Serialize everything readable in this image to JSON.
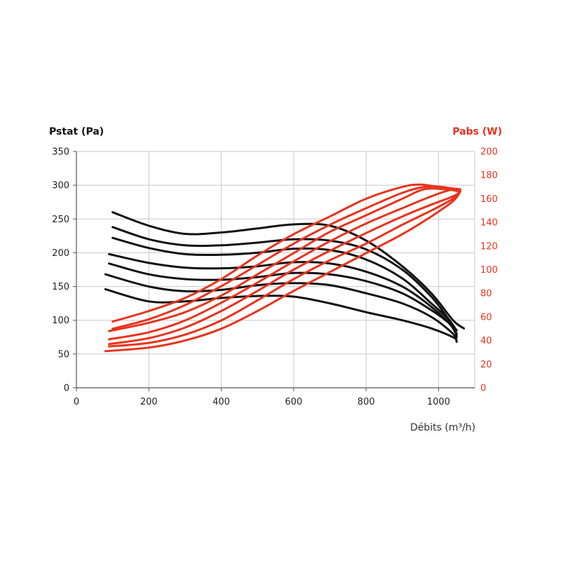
{
  "chart_data": {
    "type": "line",
    "xlabel": "Débits (m³/h)",
    "ylabel_left": "Pstat (Pa)",
    "ylabel_right": "Pabs (W)",
    "x_ticks": [
      0,
      200,
      400,
      600,
      800,
      1000
    ],
    "y_left_ticks": [
      0,
      50,
      100,
      150,
      200,
      250,
      300,
      350
    ],
    "y_right_ticks": [
      0,
      20,
      40,
      60,
      80,
      100,
      120,
      140,
      160,
      180,
      200
    ],
    "xlim": [
      0,
      1100
    ],
    "ylim_left": [
      0,
      350
    ],
    "ylim_right": [
      0,
      200
    ],
    "grid": true,
    "colors": {
      "pstat": "#111111",
      "pabs": "#e8331c",
      "grid": "#c8c8c8",
      "axis": "#555555"
    },
    "series_pstat": [
      {
        "values": [
          [
            100,
            260
          ],
          [
            200,
            240
          ],
          [
            300,
            228
          ],
          [
            400,
            230
          ],
          [
            500,
            236
          ],
          [
            600,
            242
          ],
          [
            700,
            240
          ],
          [
            800,
            218
          ],
          [
            900,
            180
          ],
          [
            980,
            140
          ],
          [
            1040,
            100
          ],
          [
            1070,
            88
          ]
        ]
      },
      {
        "values": [
          [
            100,
            238
          ],
          [
            200,
            220
          ],
          [
            300,
            211
          ],
          [
            400,
            211
          ],
          [
            500,
            215
          ],
          [
            600,
            220
          ],
          [
            700,
            218
          ],
          [
            800,
            205
          ],
          [
            900,
            175
          ],
          [
            980,
            135
          ],
          [
            1030,
            100
          ],
          [
            1050,
            85
          ]
        ]
      },
      {
        "values": [
          [
            100,
            222
          ],
          [
            200,
            207
          ],
          [
            300,
            198
          ],
          [
            400,
            197
          ],
          [
            500,
            200
          ],
          [
            600,
            206
          ],
          [
            700,
            204
          ],
          [
            800,
            190
          ],
          [
            900,
            162
          ],
          [
            980,
            125
          ],
          [
            1030,
            100
          ],
          [
            1050,
            80
          ]
        ]
      },
      {
        "values": [
          [
            90,
            198
          ],
          [
            200,
            185
          ],
          [
            300,
            178
          ],
          [
            400,
            177
          ],
          [
            500,
            180
          ],
          [
            600,
            186
          ],
          [
            700,
            184
          ],
          [
            800,
            172
          ],
          [
            900,
            150
          ],
          [
            980,
            120
          ],
          [
            1040,
            90
          ],
          [
            1050,
            75
          ]
        ]
      },
      {
        "values": [
          [
            90,
            184
          ],
          [
            200,
            168
          ],
          [
            300,
            161
          ],
          [
            400,
            160
          ],
          [
            500,
            164
          ],
          [
            600,
            170
          ],
          [
            700,
            168
          ],
          [
            800,
            158
          ],
          [
            900,
            140
          ],
          [
            980,
            115
          ],
          [
            1030,
            95
          ],
          [
            1050,
            78
          ]
        ]
      },
      {
        "values": [
          [
            80,
            168
          ],
          [
            200,
            150
          ],
          [
            300,
            143
          ],
          [
            400,
            145
          ],
          [
            500,
            152
          ],
          [
            600,
            155
          ],
          [
            700,
            152
          ],
          [
            800,
            140
          ],
          [
            900,
            125
          ],
          [
            980,
            105
          ],
          [
            1040,
            80
          ],
          [
            1050,
            68
          ]
        ]
      },
      {
        "values": [
          [
            80,
            146
          ],
          [
            200,
            128
          ],
          [
            300,
            128
          ],
          [
            400,
            133
          ],
          [
            500,
            136
          ],
          [
            600,
            135
          ],
          [
            700,
            125
          ],
          [
            800,
            112
          ],
          [
            900,
            100
          ],
          [
            980,
            88
          ],
          [
            1040,
            75
          ],
          [
            1050,
            70
          ]
        ]
      }
    ],
    "series_pabs": [
      {
        "values": [
          [
            100,
            56
          ],
          [
            200,
            65
          ],
          [
            300,
            76
          ],
          [
            400,
            92
          ],
          [
            500,
            112
          ],
          [
            600,
            130
          ],
          [
            700,
            145
          ],
          [
            800,
            160
          ],
          [
            900,
            170
          ],
          [
            950,
            172
          ],
          [
            1000,
            170
          ],
          [
            1060,
            168
          ]
        ]
      },
      {
        "values": [
          [
            100,
            50
          ],
          [
            200,
            58
          ],
          [
            300,
            70
          ],
          [
            400,
            86
          ],
          [
            500,
            104
          ],
          [
            600,
            122
          ],
          [
            700,
            138
          ],
          [
            800,
            152
          ],
          [
            900,
            165
          ],
          [
            960,
            170
          ],
          [
            1010,
            170
          ],
          [
            1060,
            167
          ]
        ]
      },
      {
        "values": [
          [
            90,
            48
          ],
          [
            200,
            55
          ],
          [
            300,
            64
          ],
          [
            400,
            78
          ],
          [
            500,
            96
          ],
          [
            600,
            114
          ],
          [
            700,
            132
          ],
          [
            800,
            146
          ],
          [
            900,
            160
          ],
          [
            960,
            168
          ],
          [
            1020,
            168
          ],
          [
            1060,
            166
          ]
        ]
      },
      {
        "values": [
          [
            90,
            41
          ],
          [
            200,
            47
          ],
          [
            300,
            57
          ],
          [
            400,
            72
          ],
          [
            500,
            89
          ],
          [
            600,
            107
          ],
          [
            700,
            124
          ],
          [
            800,
            139
          ],
          [
            900,
            152
          ],
          [
            980,
            162
          ],
          [
            1040,
            168
          ],
          [
            1060,
            166
          ]
        ]
      },
      {
        "values": [
          [
            90,
            37
          ],
          [
            200,
            42
          ],
          [
            300,
            51
          ],
          [
            400,
            65
          ],
          [
            500,
            82
          ],
          [
            600,
            100
          ],
          [
            700,
            116
          ],
          [
            800,
            131
          ],
          [
            900,
            145
          ],
          [
            980,
            155
          ],
          [
            1040,
            162
          ],
          [
            1060,
            166
          ]
        ]
      },
      {
        "values": [
          [
            90,
            35
          ],
          [
            200,
            38
          ],
          [
            300,
            45
          ],
          [
            400,
            57
          ],
          [
            500,
            74
          ],
          [
            600,
            92
          ],
          [
            700,
            108
          ],
          [
            800,
            122
          ],
          [
            900,
            138
          ],
          [
            980,
            150
          ],
          [
            1040,
            160
          ],
          [
            1060,
            166
          ]
        ]
      },
      {
        "values": [
          [
            80,
            31
          ],
          [
            200,
            34
          ],
          [
            300,
            40
          ],
          [
            400,
            50
          ],
          [
            500,
            65
          ],
          [
            600,
            82
          ],
          [
            700,
            98
          ],
          [
            800,
            114
          ],
          [
            900,
            130
          ],
          [
            980,
            145
          ],
          [
            1040,
            158
          ],
          [
            1060,
            166
          ]
        ]
      }
    ]
  }
}
